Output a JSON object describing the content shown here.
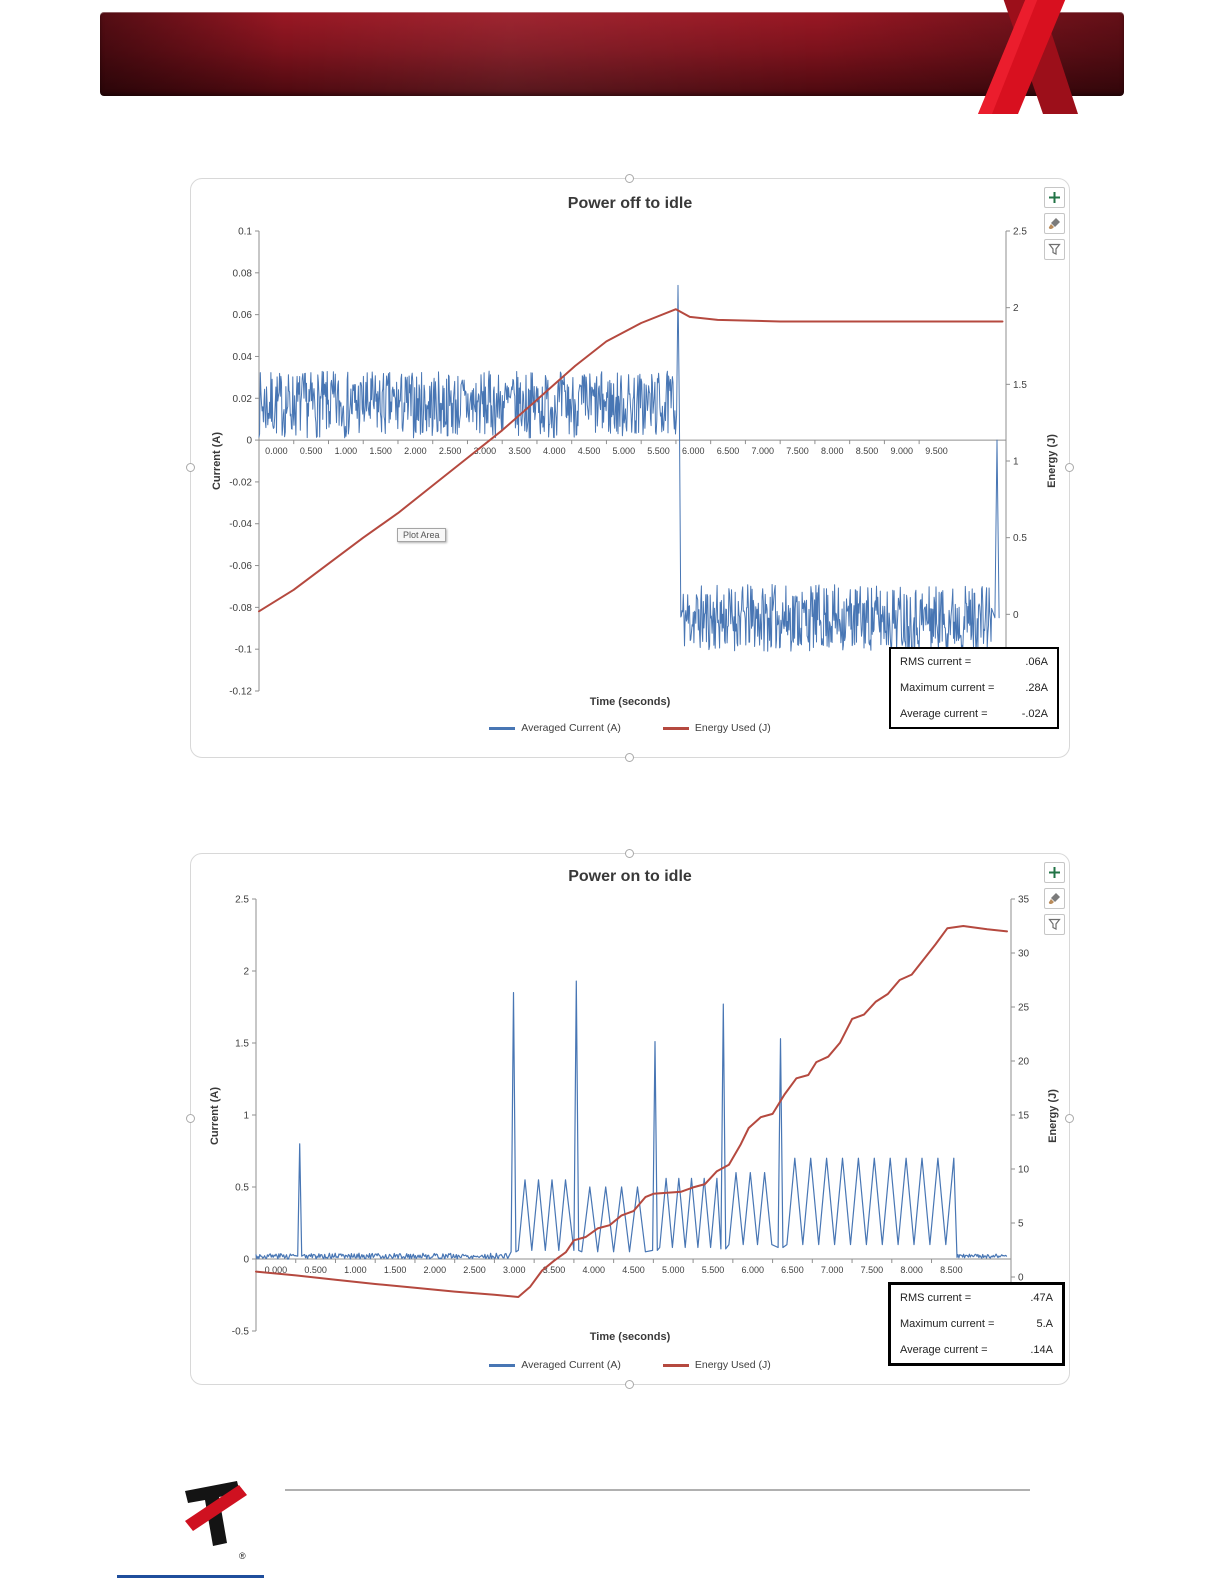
{
  "header": {
    "bar_dark": "#4a090f",
    "bar_mid": "#8c1520",
    "ribbon_bright": "#d8101f",
    "ribbon_dark": "#9c0f1a"
  },
  "icons": [
    {
      "name": "chart-elements-plus-icon",
      "glyph": "+"
    },
    {
      "name": "chart-styles-brush-icon",
      "glyph": "brush"
    },
    {
      "name": "chart-filters-funnel-icon",
      "glyph": "funnel"
    }
  ],
  "footer": {
    "registered_mark": "®"
  },
  "chart_data": [
    {
      "type": "line",
      "title": "Power off to idle",
      "xlabel": "Time (seconds)",
      "ylabel_left": "Current (A)",
      "ylabel_right": "Energy (J)",
      "x_range": [
        0,
        10.75
      ],
      "x_tick_step": 0.5,
      "x_tick_labels": [
        "0.000",
        "0.500",
        "1.000",
        "1.500",
        "2.000",
        "2.500",
        "3.000",
        "3.500",
        "4.000",
        "4.500",
        "5.000",
        "5.500",
        "6.000",
        "6.500",
        "7.000",
        "7.500",
        "8.000",
        "8.500",
        "9.000",
        "9.500"
      ],
      "left_axis": {
        "min": -0.12,
        "max": 0.1,
        "ticks": [
          0.1,
          0.08,
          0.06,
          0.04,
          0.02,
          0,
          -0.02,
          -0.04,
          -0.06,
          -0.08,
          -0.1,
          -0.12
        ],
        "tick_labels": [
          "0.1",
          "0.08",
          "0.06",
          "0.04",
          "0.02",
          "0",
          "-0.02",
          "-0.04",
          "-0.06",
          "-0.08",
          "-0.1",
          "-0.12"
        ]
      },
      "right_axis": {
        "min": -0.5,
        "max": 2.5,
        "ticks": [
          2.5,
          2,
          1.5,
          1,
          0.5,
          0
        ],
        "tick_labels": [
          "2.5",
          "2",
          "1.5",
          "1",
          "0.5",
          "0"
        ]
      },
      "plot_area_tooltip": "Plot Area",
      "legend": [
        {
          "label": "Averaged Current (A)",
          "color": "#4876b4"
        },
        {
          "label": "Energy Used (J)",
          "color": "#b5493f"
        }
      ],
      "stats": [
        {
          "label": "RMS current =",
          "value": ".06A"
        },
        {
          "label": "Maximum current =",
          "value": ".28A"
        },
        {
          "label": "Average current =",
          "value": "-.02A"
        }
      ],
      "series": [
        {
          "name": "Averaged Current (A)",
          "axis": "left",
          "color": "#4876b4",
          "width": 1,
          "segments": [
            {
              "type": "noise",
              "x0": 0,
              "x1": 6.0,
              "dx": 0.009,
              "mean": 0.017,
              "amp": 0.016,
              "seed": 7
            },
            {
              "type": "spike",
              "x": 6.03,
              "peak": 0.074,
              "base": 0.012,
              "halfwidth": 0.02
            },
            {
              "type": "noise",
              "x0": 6.07,
              "x1": 10.55,
              "dx": 0.009,
              "mean": -0.085,
              "amp": 0.016,
              "seed": 11
            },
            {
              "type": "spike",
              "x": 10.62,
              "peak": 0.0,
              "base": -0.085,
              "halfwidth": 0.03
            }
          ]
        },
        {
          "name": "Energy Used (J)",
          "axis": "right",
          "color": "#b5493f",
          "width": 2,
          "points": [
            [
              0,
              0.02
            ],
            [
              0.5,
              0.16
            ],
            [
              1,
              0.33
            ],
            [
              1.5,
              0.5
            ],
            [
              2,
              0.66
            ],
            [
              2.5,
              0.84
            ],
            [
              3,
              1.02
            ],
            [
              3.5,
              1.2
            ],
            [
              4,
              1.4
            ],
            [
              4.55,
              1.62
            ],
            [
              5,
              1.78
            ],
            [
              5.5,
              1.9
            ],
            [
              6.0,
              1.99
            ],
            [
              6.2,
              1.94
            ],
            [
              6.6,
              1.92
            ],
            [
              7.5,
              1.91
            ],
            [
              9.0,
              1.91
            ],
            [
              10.7,
              1.91
            ]
          ]
        }
      ]
    },
    {
      "type": "line",
      "title": "Power on to idle",
      "xlabel": "Time (seconds)",
      "ylabel_left": "Current (A)",
      "ylabel_right": "Energy (J)",
      "x_range": [
        0,
        9.5
      ],
      "x_tick_step": 0.5,
      "x_tick_labels": [
        "0.000",
        "0.500",
        "1.000",
        "1.500",
        "2.000",
        "2.500",
        "3.000",
        "3.500",
        "4.000",
        "4.500",
        "5.000",
        "5.500",
        "6.000",
        "6.500",
        "7.000",
        "7.500",
        "8.000",
        "8.500"
      ],
      "left_axis": {
        "min": -0.5,
        "max": 2.5,
        "ticks": [
          2.5,
          2,
          1.5,
          1,
          0.5,
          0,
          -0.5
        ],
        "tick_labels": [
          "2.5",
          "2",
          "1.5",
          "1",
          "0.5",
          "0",
          "-0.5"
        ]
      },
      "right_axis": {
        "min": -5,
        "max": 35,
        "ticks": [
          35,
          30,
          25,
          20,
          15,
          10,
          5,
          0
        ],
        "tick_labels": [
          "35",
          "30",
          "25",
          "20",
          "15",
          "10",
          "5",
          "0"
        ]
      },
      "legend": [
        {
          "label": "Averaged Current (A)",
          "color": "#4876b4"
        },
        {
          "label": "Energy Used (J)",
          "color": "#b5493f"
        }
      ],
      "stats": [
        {
          "label": "RMS current =",
          "value": ".47A"
        },
        {
          "label": "Maximum current =",
          "value": "5.A"
        },
        {
          "label": "Average current =",
          "value": ".14A"
        }
      ],
      "series": [
        {
          "name": "Averaged Current (A)",
          "axis": "left",
          "color": "#4876b4",
          "width": 1.2,
          "segments": [
            {
              "type": "noise",
              "x0": 0,
              "x1": 0.5,
              "dx": 0.012,
              "mean": 0.02,
              "amp": 0.02,
              "seed": 3
            },
            {
              "type": "spike",
              "x": 0.55,
              "peak": 0.8,
              "base": 0.02,
              "halfwidth": 0.025
            },
            {
              "type": "noise",
              "x0": 0.6,
              "x1": 3.17,
              "dx": 0.012,
              "mean": 0.02,
              "amp": 0.02,
              "seed": 5
            },
            {
              "type": "spike",
              "x": 3.24,
              "peak": 1.85,
              "base": 0.05,
              "halfwidth": 0.03
            },
            {
              "type": "osc",
              "x0": 3.3,
              "x1": 3.96,
              "period": 0.17,
              "lo": 0.06,
              "hi": 0.55
            },
            {
              "type": "spike",
              "x": 4.03,
              "peak": 1.93,
              "base": 0.06,
              "halfwidth": 0.03
            },
            {
              "type": "osc",
              "x0": 4.1,
              "x1": 4.96,
              "period": 0.2,
              "lo": 0.05,
              "hi": 0.5
            },
            {
              "type": "spike",
              "x": 5.02,
              "peak": 1.51,
              "base": 0.06,
              "halfwidth": 0.03
            },
            {
              "type": "osc",
              "x0": 5.08,
              "x1": 5.82,
              "period": 0.16,
              "lo": 0.08,
              "hi": 0.56
            },
            {
              "type": "spike",
              "x": 5.88,
              "peak": 1.77,
              "base": 0.07,
              "halfwidth": 0.03
            },
            {
              "type": "osc",
              "x0": 5.95,
              "x1": 6.52,
              "period": 0.18,
              "lo": 0.1,
              "hi": 0.6
            },
            {
              "type": "spike",
              "x": 6.6,
              "peak": 1.53,
              "base": 0.08,
              "halfwidth": 0.03
            },
            {
              "type": "osc",
              "x0": 6.68,
              "x1": 8.78,
              "period": 0.2,
              "lo": 0.1,
              "hi": 0.7
            },
            {
              "type": "noise",
              "x0": 8.82,
              "x1": 9.45,
              "dx": 0.012,
              "mean": 0.02,
              "amp": 0.015,
              "seed": 9
            }
          ]
        },
        {
          "name": "Energy Used (J)",
          "axis": "right",
          "color": "#b5493f",
          "width": 2,
          "points": [
            [
              0,
              0.5
            ],
            [
              0.5,
              0.15
            ],
            [
              1,
              -0.25
            ],
            [
              1.5,
              -0.65
            ],
            [
              2,
              -1.0
            ],
            [
              2.5,
              -1.35
            ],
            [
              3,
              -1.65
            ],
            [
              3.3,
              -1.85
            ],
            [
              3.45,
              -0.9
            ],
            [
              3.6,
              0.6
            ],
            [
              3.75,
              1.5
            ],
            [
              3.9,
              2.3
            ],
            [
              4.0,
              3.4
            ],
            [
              4.15,
              3.7
            ],
            [
              4.3,
              4.5
            ],
            [
              4.45,
              4.8
            ],
            [
              4.6,
              5.7
            ],
            [
              4.75,
              6.1
            ],
            [
              4.9,
              7.4
            ],
            [
              5.0,
              7.7
            ],
            [
              5.35,
              7.9
            ],
            [
              5.5,
              8.3
            ],
            [
              5.65,
              8.6
            ],
            [
              5.8,
              9.8
            ],
            [
              5.95,
              10.4
            ],
            [
              6.1,
              12.3
            ],
            [
              6.2,
              13.8
            ],
            [
              6.35,
              14.8
            ],
            [
              6.5,
              15.1
            ],
            [
              6.65,
              16.9
            ],
            [
              6.8,
              18.4
            ],
            [
              6.95,
              18.7
            ],
            [
              7.05,
              19.9
            ],
            [
              7.2,
              20.4
            ],
            [
              7.35,
              21.7
            ],
            [
              7.5,
              23.9
            ],
            [
              7.65,
              24.3
            ],
            [
              7.8,
              25.5
            ],
            [
              7.95,
              26.2
            ],
            [
              8.1,
              27.5
            ],
            [
              8.25,
              28.0
            ],
            [
              8.4,
              29.4
            ],
            [
              8.55,
              30.8
            ],
            [
              8.7,
              32.3
            ],
            [
              8.9,
              32.5
            ],
            [
              9.2,
              32.2
            ],
            [
              9.45,
              32.0
            ]
          ]
        }
      ]
    }
  ]
}
